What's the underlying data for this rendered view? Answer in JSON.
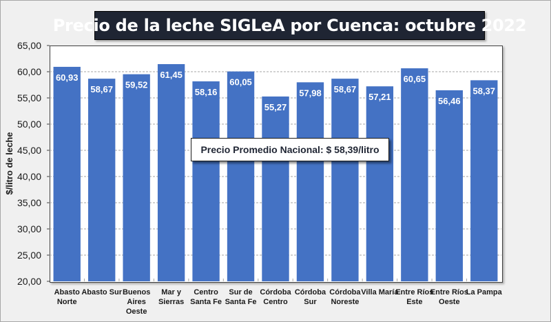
{
  "chart_data": {
    "type": "bar",
    "title": "Precio de la leche SIGLeA por Cuenca: octubre 2022",
    "xlabel": "",
    "ylabel": "$/litro de leche",
    "ylim": [
      20,
      65
    ],
    "yticks": [
      "20,00",
      "25,00",
      "30,00",
      "35,00",
      "40,00",
      "45,00",
      "50,00",
      "55,00",
      "60,00",
      "65,00"
    ],
    "ytick_values": [
      20,
      25,
      30,
      35,
      40,
      45,
      50,
      55,
      60,
      65
    ],
    "grid": "horizontal-dashed",
    "categories": [
      [
        "Abasto",
        "Norte"
      ],
      [
        "Abasto Sur"
      ],
      [
        "Buenos",
        "Aires",
        "Oeste"
      ],
      [
        "Mar y",
        "Sierras"
      ],
      [
        "Centro",
        "Santa Fe"
      ],
      [
        "Sur de",
        "Santa Fe"
      ],
      [
        "Córdoba",
        "Centro"
      ],
      [
        "Córdoba",
        "Sur"
      ],
      [
        "Córdoba",
        "Noreste"
      ],
      [
        "Villa María"
      ],
      [
        "Entre Ríos",
        "Este"
      ],
      [
        "Entre Ríos",
        "Oeste"
      ],
      [
        "La Pampa"
      ]
    ],
    "values": [
      60.93,
      58.67,
      59.52,
      61.45,
      58.16,
      60.05,
      55.27,
      57.98,
      58.67,
      57.21,
      60.65,
      56.46,
      58.37
    ],
    "data_labels": [
      "60,93",
      "58,67",
      "59,52",
      "61,45",
      "58,16",
      "60,05",
      "55,27",
      "57,98",
      "58,67",
      "57,21",
      "60,65",
      "56,46",
      "58,37"
    ],
    "bar_color": "#4472c4",
    "annotation": "Precio Promedio Nacional: $ 58,39/litro",
    "annotation_value": 58.39
  }
}
